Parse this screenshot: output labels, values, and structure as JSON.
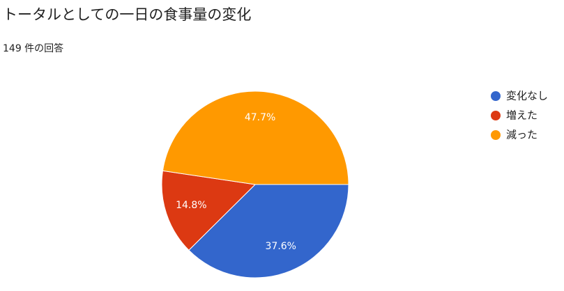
{
  "chart_data": {
    "type": "pie",
    "title": "トータルとしての一日の食事量の変化",
    "subtitle": "149 件の回答",
    "categories": [
      "変化なし",
      "増えた",
      "減った"
    ],
    "values": [
      37.6,
      14.8,
      47.7
    ],
    "value_labels": [
      "37.6%",
      "14.8%",
      "47.7%"
    ],
    "colors": [
      "#3366cc",
      "#dc3912",
      "#ff9900"
    ],
    "legend": "right"
  }
}
